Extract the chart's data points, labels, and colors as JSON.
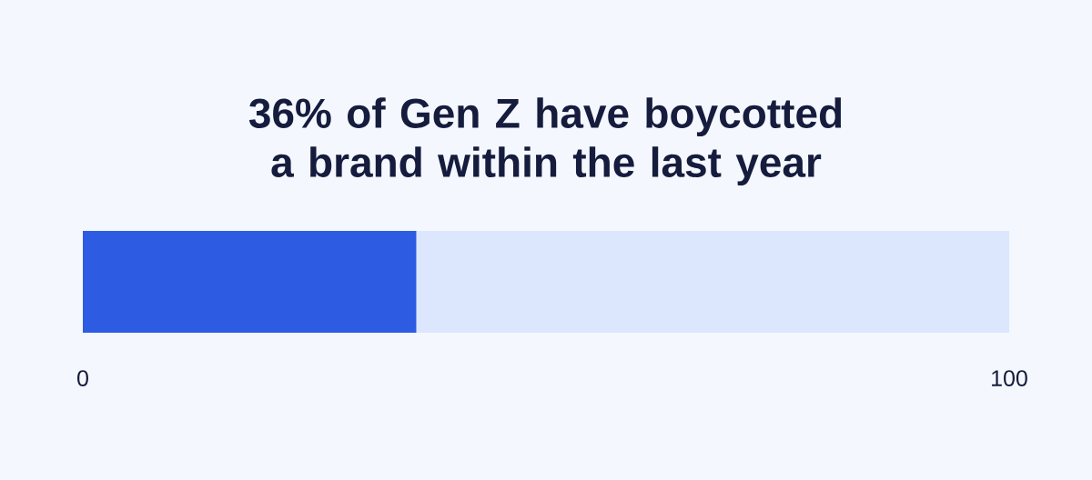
{
  "chart_data": {
    "type": "bar",
    "orientation": "horizontal",
    "stacked": true,
    "title": "36% of Gen Z have boycotted a brand within the last year",
    "categories": [
      null
    ],
    "series": [
      {
        "color": "#2d5ce3",
        "values": [
          36
        ]
      },
      {
        "color": "#dce7fd",
        "values": [
          64
        ]
      }
    ],
    "xlim": [
      0,
      100
    ],
    "xticks": [
      0,
      100
    ]
  }
}
